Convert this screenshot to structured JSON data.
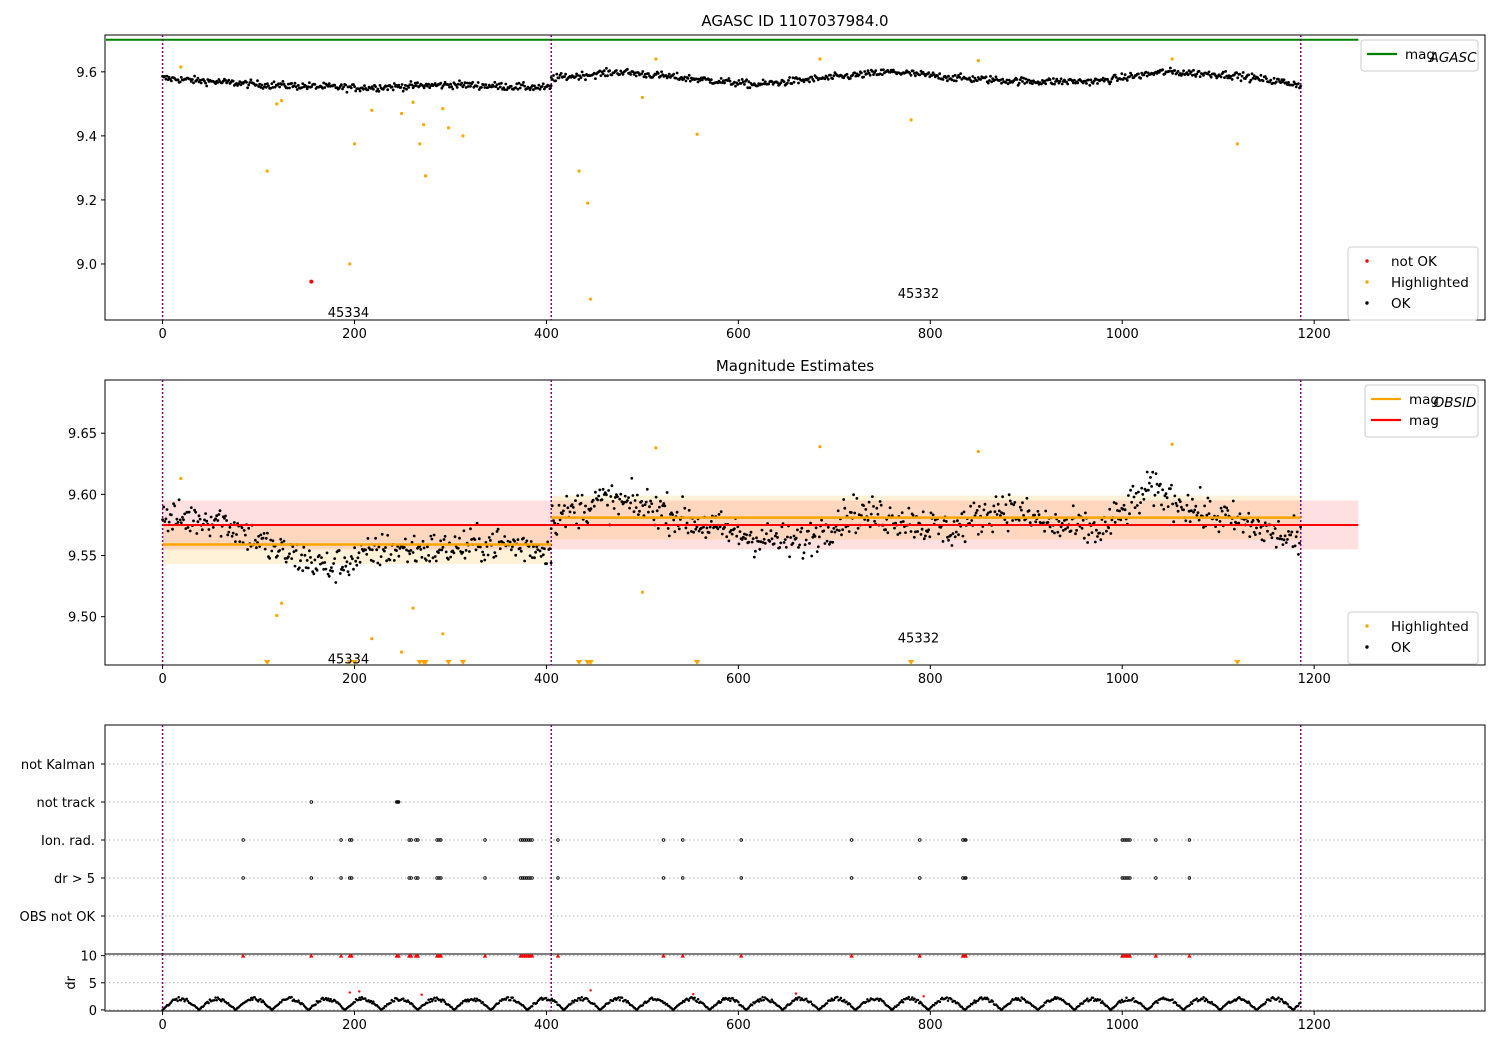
{
  "colors": {
    "ok": "#000000",
    "highlighted": "#ffa500",
    "not_ok": "#ff0000",
    "mag_agasc": "#008000",
    "mag_obsid": "#ffa500",
    "mag": "#ff0000",
    "obsid_boundary": "#800080"
  },
  "chart_data": [
    {
      "type": "scatter",
      "title": "AGASC ID 1107037984.0",
      "xlabel": "",
      "ylabel": "",
      "xlim": [
        -60,
        1378
      ],
      "ylim": [
        8.825,
        9.715
      ],
      "x_ticks": [
        "0",
        "200",
        "400",
        "600",
        "800",
        "1000",
        "1200"
      ],
      "y_ticks": [
        "9.0",
        "9.2",
        "9.4",
        "9.6"
      ],
      "grid": false,
      "legend_position": "top-right and bottom-right",
      "legend_top": [
        {
          "label": "mag",
          "sub": "AGASC",
          "color": "#008000"
        }
      ],
      "legend_bottom": [
        {
          "label": "not OK",
          "color": "#ff0000"
        },
        {
          "label": "Highlighted",
          "color": "#ffa500"
        },
        {
          "label": "OK",
          "color": "#000000"
        }
      ],
      "mag_agasc": 9.7,
      "obsid_boundaries": [
        0,
        405,
        1186
      ],
      "annotations": [
        {
          "text": "45334",
          "x": 202,
          "y": 8.85
        },
        {
          "text": "45332",
          "x": 796,
          "y": 8.91
        }
      ],
      "series": [
        {
          "name": "OK",
          "color": "#000000",
          "segments": [
            {
              "x": [
                0,
                405
              ],
              "base": [
                9.58,
                9.56,
                9.55,
                9.56,
                9.55
              ],
              "spread": 0.02
            },
            {
              "x": [
                405,
                1186
              ],
              "base": [
                9.58,
                9.6,
                9.58,
                9.56,
                9.58,
                9.6,
                9.58,
                9.57,
                9.57,
                9.6,
                9.59,
                9.56
              ],
              "spread": 0.02
            }
          ]
        },
        {
          "name": "Highlighted",
          "color": "#ffa500",
          "points": [
            [
              19,
              9.615
            ],
            [
              109,
              9.29
            ],
            [
              119,
              9.5
            ],
            [
              124,
              9.51
            ],
            [
              200,
              9.375
            ],
            [
              218,
              9.48
            ],
            [
              249,
              9.47
            ],
            [
              261,
              9.505
            ],
            [
              268,
              9.375
            ],
            [
              272,
              9.435
            ],
            [
              274,
              9.275
            ],
            [
              292,
              9.485
            ],
            [
              298,
              9.425
            ],
            [
              313,
              9.4
            ],
            [
              195,
              9.0
            ],
            [
              434,
              9.29
            ],
            [
              443,
              9.19
            ],
            [
              446,
              8.89
            ],
            [
              500,
              9.52
            ],
            [
              514,
              9.64
            ],
            [
              557,
              9.405
            ],
            [
              685,
              9.64
            ],
            [
              780,
              9.45
            ],
            [
              850,
              9.635
            ],
            [
              1052,
              9.64
            ],
            [
              1120,
              9.375
            ]
          ]
        },
        {
          "name": "not OK",
          "color": "#ff0000",
          "points": [
            [
              155,
              8.945
            ]
          ]
        }
      ]
    },
    {
      "type": "scatter",
      "title": "Magnitude Estimates",
      "xlabel": "",
      "ylabel": "",
      "xlim": [
        -60,
        1378
      ],
      "ylim": [
        9.4605,
        9.6935
      ],
      "x_ticks": [
        "0",
        "200",
        "400",
        "600",
        "800",
        "1000",
        "1200"
      ],
      "y_ticks": [
        "9.50",
        "9.55",
        "9.60",
        "9.65"
      ],
      "grid": false,
      "legend_position": "top-right and bottom-right",
      "legend_top": [
        {
          "label": "mag",
          "sub": "OBSID",
          "color": "#ffa500"
        },
        {
          "label": "mag",
          "sub": "",
          "color": "#ff0000"
        }
      ],
      "legend_bottom": [
        {
          "label": "Highlighted",
          "color": "#ffa500"
        },
        {
          "label": "OK",
          "color": "#000000"
        }
      ],
      "obsid_boundaries": [
        0,
        405,
        1186
      ],
      "mag": {
        "value": 9.575,
        "band": [
          9.555,
          9.595
        ],
        "x": [
          0,
          1246
        ]
      },
      "mag_obsid": [
        {
          "x": [
            0,
            405
          ],
          "value": 9.559,
          "band": [
            9.543,
            9.575
          ]
        },
        {
          "x": [
            405,
            1186
          ],
          "value": 9.581,
          "band": [
            9.563,
            9.599
          ]
        }
      ],
      "annotations": [
        {
          "text": "45334",
          "x": 202,
          "y": 9.466
        },
        {
          "text": "45332",
          "x": 796,
          "y": 9.483
        }
      ],
      "off_scale_markers_x": [
        109,
        195,
        200,
        268,
        272,
        274,
        298,
        313,
        434,
        443,
        446,
        557,
        780,
        1120
      ],
      "series": [
        {
          "name": "OK",
          "color": "#000000",
          "segments": [
            {
              "x": [
                0,
                405
              ],
              "base": [
                9.58,
                9.58,
                9.555,
                9.54,
                9.555,
                9.555,
                9.56,
                9.555
              ],
              "spread": 0.024
            },
            {
              "x": [
                405,
                1186
              ],
              "base": [
                9.58,
                9.595,
                9.59,
                9.575,
                9.565,
                9.56,
                9.585,
                9.58,
                9.57,
                9.59,
                9.575,
                9.57,
                9.605,
                9.585,
                9.575,
                9.56
              ],
              "spread": 0.025
            }
          ]
        },
        {
          "name": "Highlighted",
          "color": "#ffa500",
          "points": [
            [
              19,
              9.613
            ],
            [
              119,
              9.501
            ],
            [
              124,
              9.511
            ],
            [
              218,
              9.482
            ],
            [
              249,
              9.471
            ],
            [
              261,
              9.507
            ],
            [
              292,
              9.486
            ],
            [
              500,
              9.52
            ],
            [
              514,
              9.638
            ],
            [
              685,
              9.639
            ],
            [
              850,
              9.635
            ],
            [
              1052,
              9.641
            ]
          ]
        }
      ]
    },
    {
      "type": "scatter",
      "title": "",
      "xlabel": "",
      "ylabel": "",
      "xlim": [
        -60,
        1378
      ],
      "categories": [
        "not Kalman",
        "not track",
        "Ion. rad.",
        "dr > 5",
        "OBS not OK"
      ],
      "grid": true,
      "obsid_boundaries": [
        0,
        405,
        1186
      ],
      "flags": [
        {
          "category": "not track",
          "x": [
            155,
            244,
            245,
            246
          ]
        },
        {
          "category": "Ion. rad.",
          "x": [
            84,
            186,
            195,
            197,
            257,
            259,
            264,
            266,
            286,
            288,
            290,
            336,
            373,
            375,
            377,
            379,
            381,
            383,
            385,
            412,
            522,
            542,
            603,
            718,
            789,
            834,
            836,
            837,
            1000,
            1002,
            1004,
            1006,
            1008,
            1035,
            1070
          ]
        },
        {
          "category": "dr > 5",
          "x": [
            84,
            155,
            186,
            195,
            197,
            257,
            259,
            264,
            266,
            286,
            288,
            290,
            336,
            373,
            375,
            377,
            379,
            381,
            383,
            385,
            412,
            522,
            542,
            603,
            718,
            789,
            834,
            836,
            837,
            1000,
            1002,
            1004,
            1006,
            1008,
            1035,
            1070
          ]
        }
      ]
    },
    {
      "type": "scatter",
      "title": "",
      "xlabel": "",
      "ylabel": "dr",
      "xlim": [
        -60,
        1378
      ],
      "ylim": [
        -0.2,
        10.3
      ],
      "x_ticks": [
        "0",
        "200",
        "400",
        "600",
        "800",
        "1000",
        "1200"
      ],
      "y_ticks": [
        "0",
        "5",
        "10"
      ],
      "grid": true,
      "obsid_boundaries": [
        0,
        405,
        1186
      ],
      "clipped_marker_x": [
        84,
        155,
        186,
        195,
        197,
        244,
        246,
        257,
        259,
        264,
        266,
        286,
        288,
        290,
        336,
        373,
        375,
        377,
        379,
        381,
        383,
        385,
        412,
        522,
        542,
        603,
        718,
        789,
        834,
        836,
        837,
        1000,
        1002,
        1004,
        1006,
        1008,
        1035,
        1070
      ],
      "red_points": [
        [
          195,
          3.2
        ],
        [
          205,
          3.4
        ],
        [
          270,
          2.8
        ],
        [
          446,
          3.6
        ],
        [
          553,
          2.9
        ],
        [
          660,
          3.0
        ],
        [
          793,
          2.5
        ]
      ],
      "series": [
        {
          "name": "dr",
          "color": "#000000",
          "amplitude": 2.4,
          "period": 38
        }
      ]
    }
  ]
}
